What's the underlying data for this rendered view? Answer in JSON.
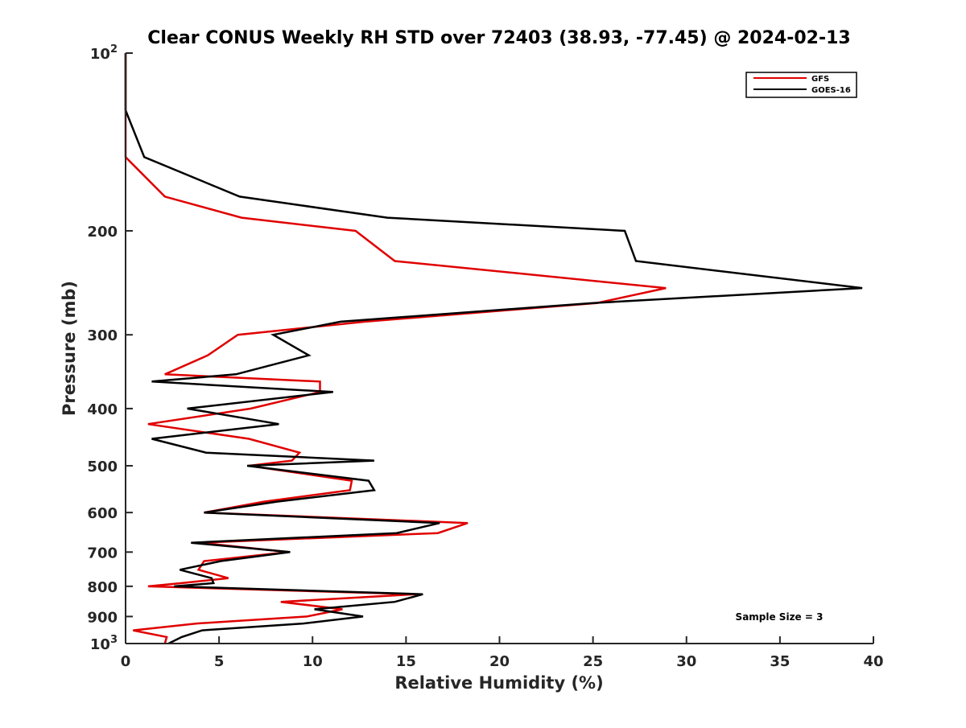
{
  "chart_data": {
    "type": "line",
    "title": "Clear CONUS Weekly RH STD over 72403 (38.93, -77.45) @ 2024-02-13",
    "xlabel": "Relative Humidity (%)",
    "ylabel": "Pressure (mb)",
    "xlim": [
      0,
      40
    ],
    "ylim": [
      100,
      1000
    ],
    "y_scale": "log",
    "y_reversed": true,
    "x_ticks": [
      0,
      5,
      10,
      15,
      20,
      25,
      30,
      35,
      40
    ],
    "y_ticks": [
      {
        "value": 100,
        "base": "10",
        "exp": "2"
      },
      {
        "value": 200,
        "label": "200"
      },
      {
        "value": 300,
        "label": "300"
      },
      {
        "value": 400,
        "label": "400"
      },
      {
        "value": 500,
        "label": "500"
      },
      {
        "value": 600,
        "label": "600"
      },
      {
        "value": 700,
        "label": "700"
      },
      {
        "value": 800,
        "label": "800"
      },
      {
        "value": 900,
        "label": "900"
      },
      {
        "value": 1000,
        "base": "10",
        "exp": "3"
      }
    ],
    "grid": false,
    "legend": {
      "position": "top-right"
    },
    "annotation": "Sample Size = 3",
    "series": [
      {
        "name": "GFS",
        "color": "#e00000",
        "points": [
          [
            0.0,
            100
          ],
          [
            0.0,
            125
          ],
          [
            0.0,
            150
          ],
          [
            2.1,
            175
          ],
          [
            6.2,
            190
          ],
          [
            12.3,
            200
          ],
          [
            14.4,
            225
          ],
          [
            28.9,
            250
          ],
          [
            25.2,
            265
          ],
          [
            12.8,
            285
          ],
          [
            6.0,
            300
          ],
          [
            4.4,
            325
          ],
          [
            2.1,
            350
          ],
          [
            10.4,
            360
          ],
          [
            10.4,
            375
          ],
          [
            6.7,
            400
          ],
          [
            1.2,
            425
          ],
          [
            6.6,
            450
          ],
          [
            9.3,
            475
          ],
          [
            8.9,
            490
          ],
          [
            6.6,
            500
          ],
          [
            12.1,
            530
          ],
          [
            12.0,
            550
          ],
          [
            7.4,
            575
          ],
          [
            4.2,
            600
          ],
          [
            18.3,
            625
          ],
          [
            16.7,
            650
          ],
          [
            4.0,
            675
          ],
          [
            8.7,
            700
          ],
          [
            4.2,
            725
          ],
          [
            3.9,
            750
          ],
          [
            5.5,
            775
          ],
          [
            3.0,
            790
          ],
          [
            1.2,
            800
          ],
          [
            15.5,
            825
          ],
          [
            8.3,
            850
          ],
          [
            11.6,
            875
          ],
          [
            9.7,
            900
          ],
          [
            3.8,
            925
          ],
          [
            0.4,
            950
          ],
          [
            2.2,
            975
          ],
          [
            2.1,
            1000
          ]
        ]
      },
      {
        "name": "GOES-16",
        "color": "#000000",
        "points": [
          [
            0.0,
            100
          ],
          [
            0.0,
            125
          ],
          [
            1.0,
            150
          ],
          [
            6.1,
            175
          ],
          [
            14.0,
            190
          ],
          [
            26.7,
            200
          ],
          [
            27.3,
            225
          ],
          [
            39.4,
            250
          ],
          [
            25.0,
            265
          ],
          [
            11.5,
            285
          ],
          [
            7.9,
            300
          ],
          [
            9.8,
            325
          ],
          [
            5.9,
            350
          ],
          [
            1.4,
            360
          ],
          [
            11.1,
            375
          ],
          [
            3.3,
            400
          ],
          [
            8.2,
            425
          ],
          [
            1.4,
            450
          ],
          [
            4.3,
            475
          ],
          [
            13.3,
            490
          ],
          [
            6.5,
            500
          ],
          [
            13.0,
            530
          ],
          [
            13.3,
            550
          ],
          [
            8.1,
            575
          ],
          [
            4.2,
            600
          ],
          [
            16.8,
            625
          ],
          [
            14.5,
            650
          ],
          [
            3.5,
            675
          ],
          [
            8.8,
            700
          ],
          [
            5.1,
            725
          ],
          [
            2.9,
            750
          ],
          [
            4.6,
            775
          ],
          [
            4.7,
            790
          ],
          [
            2.6,
            800
          ],
          [
            15.9,
            825
          ],
          [
            14.4,
            850
          ],
          [
            10.1,
            875
          ],
          [
            12.7,
            900
          ],
          [
            9.5,
            925
          ],
          [
            4.1,
            950
          ],
          [
            3.0,
            975
          ],
          [
            2.3,
            1000
          ]
        ]
      }
    ]
  }
}
